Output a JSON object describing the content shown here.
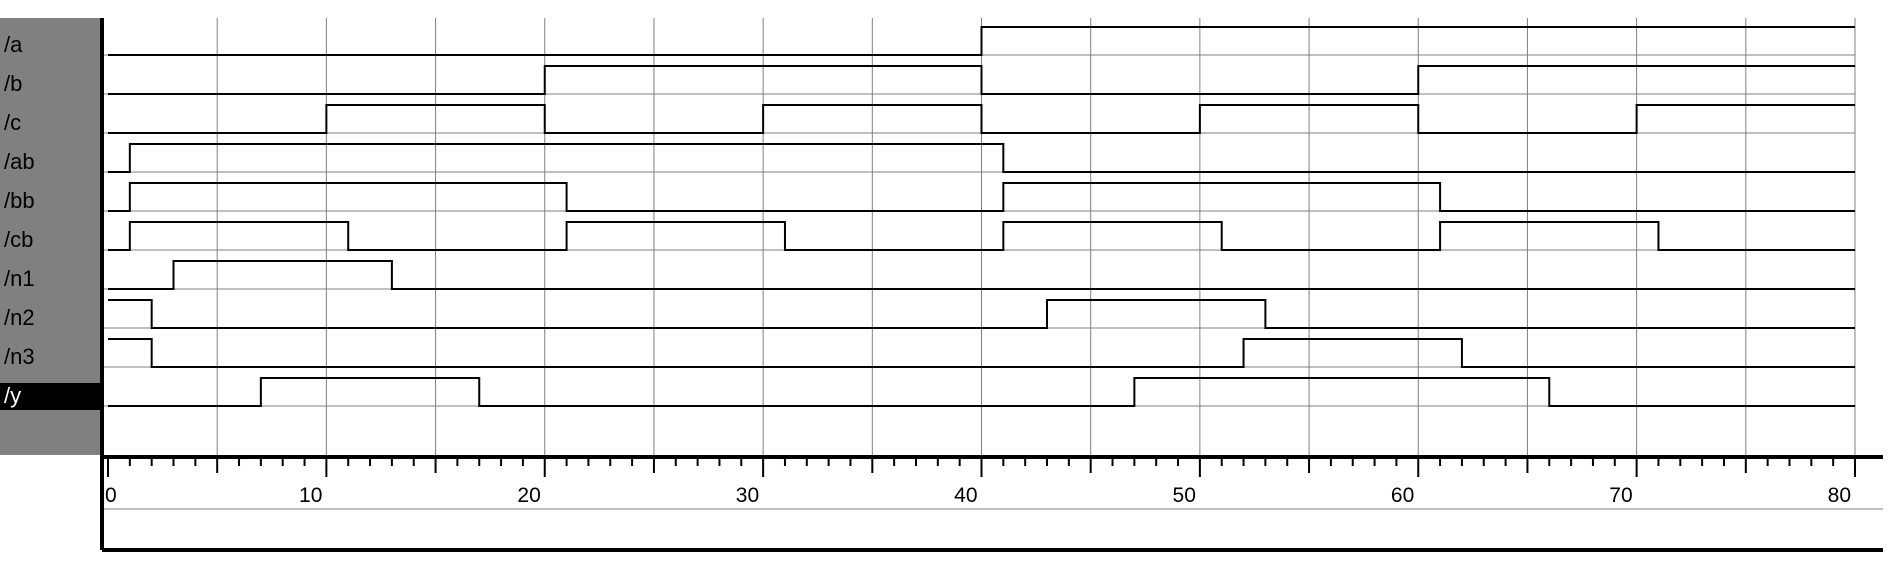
{
  "colors": {
    "background": "#ffffff",
    "name_panel": "#808080",
    "selected_row": "#000000",
    "grid": "#808080",
    "trace": "#000000",
    "frame": "#000000"
  },
  "name_prefix": "/",
  "selected_signal": "y",
  "chart_data": {
    "type": "line",
    "subtype": "digital-timing-waveform",
    "title": "",
    "xlabel": "",
    "ylabel": "",
    "xlim": [
      0,
      80
    ],
    "x_tick_labels": [
      "0",
      "10",
      "20",
      "30",
      "40",
      "50",
      "60",
      "70",
      "80"
    ],
    "x_major_step": 10,
    "x_grid_step": 5,
    "x_minor_step": 1,
    "grid": true,
    "series": [
      {
        "name": "a",
        "initial": 0,
        "transitions": [
          40
        ]
      },
      {
        "name": "b",
        "initial": 0,
        "transitions": [
          20,
          40,
          60
        ]
      },
      {
        "name": "c",
        "initial": 0,
        "transitions": [
          10,
          20,
          30,
          40,
          50,
          60,
          70
        ]
      },
      {
        "name": "ab",
        "initial": 0,
        "transitions": [
          1,
          41
        ]
      },
      {
        "name": "bb",
        "initial": 0,
        "transitions": [
          1,
          21,
          41,
          61
        ]
      },
      {
        "name": "cb",
        "initial": 0,
        "transitions": [
          1,
          11,
          21,
          31,
          41,
          51,
          61,
          71
        ]
      },
      {
        "name": "n1",
        "initial": 0,
        "transitions": [
          3,
          13
        ]
      },
      {
        "name": "n2",
        "initial": 1,
        "transitions": [
          2,
          43,
          53
        ]
      },
      {
        "name": "n3",
        "initial": 1,
        "transitions": [
          2,
          52,
          62
        ]
      },
      {
        "name": "y",
        "initial": 0,
        "transitions": [
          7,
          17,
          47,
          66
        ]
      }
    ]
  }
}
